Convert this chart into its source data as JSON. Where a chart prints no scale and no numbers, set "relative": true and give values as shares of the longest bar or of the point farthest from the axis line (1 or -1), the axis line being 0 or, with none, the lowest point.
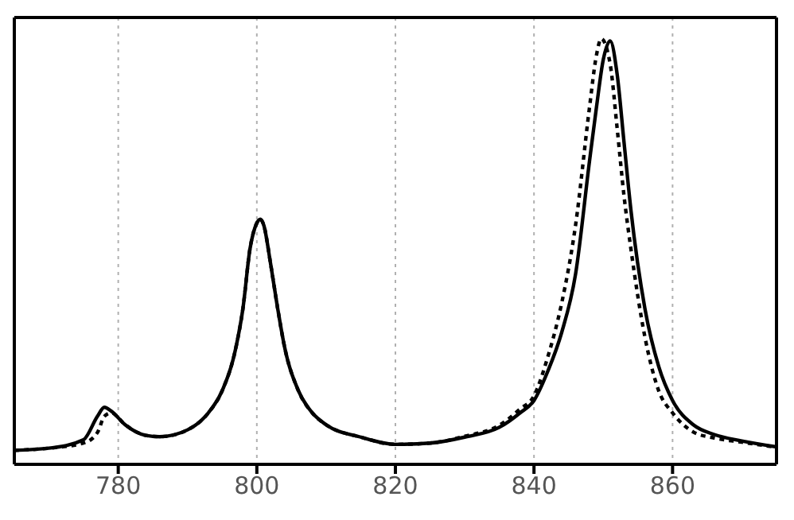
{
  "chart_data": {
    "type": "line",
    "relative": true,
    "xlim": [
      765,
      875
    ],
    "xticks": [
      780,
      800,
      820,
      840,
      860
    ],
    "grid": "x",
    "marker": "none",
    "series": [
      {
        "color": "#000000",
        "line_style": "solid",
        "x": [
          765,
          770,
          775,
          777,
          778,
          779,
          781,
          784,
          786,
          790,
          793,
          795,
          797,
          798,
          799,
          800,
          800.5,
          801,
          802,
          803,
          804,
          806,
          808,
          810,
          815,
          820,
          825,
          830,
          835,
          838,
          840,
          842,
          844,
          846,
          848,
          849,
          850,
          851,
          852,
          853,
          854,
          856,
          858,
          860,
          863,
          866,
          870,
          875
        ],
        "values": [
          0.033,
          0.038,
          0.058,
          0.113,
          0.134,
          0.125,
          0.093,
          0.068,
          0.065,
          0.081,
          0.121,
          0.173,
          0.276,
          0.367,
          0.505,
          0.567,
          0.576,
          0.562,
          0.47,
          0.367,
          0.276,
          0.173,
          0.121,
          0.093,
          0.064,
          0.047,
          0.05,
          0.064,
          0.087,
          0.121,
          0.15,
          0.219,
          0.31,
          0.447,
          0.711,
          0.837,
          0.951,
          0.995,
          0.917,
          0.756,
          0.596,
          0.367,
          0.23,
          0.15,
          0.093,
          0.07,
          0.055,
          0.041
        ]
      },
      {
        "color": "#000000",
        "line_style": "dotted",
        "x": [
          765,
          770,
          775,
          777,
          778,
          779,
          781,
          784,
          786,
          790,
          793,
          795,
          797,
          798,
          799,
          800,
          800.5,
          801,
          802,
          803,
          804,
          806,
          808,
          810,
          815,
          820,
          825,
          830,
          835,
          838,
          840,
          842,
          844,
          846,
          848,
          849,
          849.7,
          851,
          852,
          853,
          854,
          856,
          858,
          860,
          863,
          866,
          870,
          875
        ],
        "values": [
          0.033,
          0.038,
          0.05,
          0.075,
          0.113,
          0.121,
          0.093,
          0.068,
          0.065,
          0.081,
          0.121,
          0.173,
          0.276,
          0.367,
          0.505,
          0.567,
          0.576,
          0.562,
          0.47,
          0.367,
          0.276,
          0.173,
          0.121,
          0.093,
          0.064,
          0.047,
          0.05,
          0.066,
          0.092,
          0.13,
          0.161,
          0.253,
          0.379,
          0.562,
          0.837,
          0.96,
          1,
          0.94,
          0.79,
          0.63,
          0.505,
          0.3,
          0.173,
          0.121,
          0.076,
          0.062,
          0.052,
          0.04
        ]
      }
    ]
  }
}
